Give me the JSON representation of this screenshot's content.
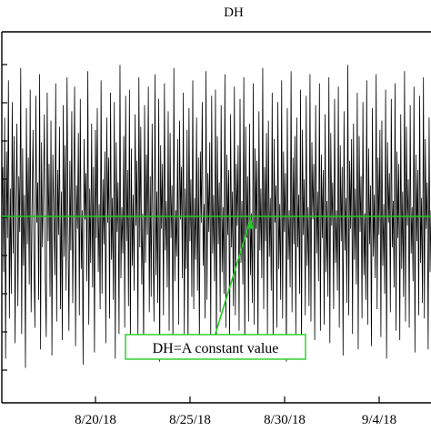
{
  "chart_data": {
    "type": "line",
    "title": "DH",
    "xlabel": "",
    "ylabel": "",
    "x_tick_labels": [
      "8/20/18",
      "8/25/18",
      "8/30/18",
      "9/4/18"
    ],
    "x_range": [
      "8/15/18",
      "9/7/18"
    ],
    "grid": false,
    "legend": "none",
    "annotation": {
      "text": "DH=A constant value",
      "points_to": "constant reference line"
    },
    "series": [
      {
        "color": "#000000",
        "values": [
          0.2,
          1.6,
          -1.8,
          3.2,
          -4.6,
          2.1,
          -0.7,
          4.4,
          -3.3,
          0.9,
          -2.5,
          3.7,
          -1.2,
          2.6,
          -4.1,
          0.4,
          3.0,
          -2.9,
          1.3,
          -0.5,
          4.8,
          -3.8,
          2.2,
          -1.6,
          0.7,
          -4.9,
          3.5,
          -0.9,
          1.9,
          -2.2,
          4.1,
          -3.1,
          0.3,
          2.8,
          -1.4,
          -3.6,
          3.9,
          -0.2,
          1.1,
          -2.7,
          4.6,
          -4.3,
          2.4,
          -1.0,
          0.6,
          3.3,
          -2.0,
          -3.9,
          4.0,
          -0.8,
          1.7,
          -2.6,
          3.1,
          -4.5,
          2.0,
          0.1,
          -1.9,
          4.3,
          -3.4,
          1.5,
          -0.6,
          2.9,
          -3.0,
          0.8,
          -4.0,
          3.6,
          -1.3,
          2.3,
          -2.4,
          4.5,
          -0.3,
          -3.7,
          1.8,
          -1.1,
          3.4,
          -2.8,
          0.5,
          4.2,
          -4.2,
          1.0,
          -0.4,
          2.7,
          -3.2,
          3.8,
          -1.7,
          0.2,
          -4.8,
          2.5,
          -0.1,
          1.4,
          -2.1,
          4.7,
          -3.5,
          0.9,
          -1.5,
          3.0,
          -2.3,
          1.6,
          -4.4,
          2.8,
          -0.7,
          3.5,
          -1.8,
          0.4,
          -3.0,
          4.4,
          -2.5,
          1.2,
          -0.9,
          2.1,
          -4.1,
          3.2,
          -0.2,
          1.9,
          -3.3,
          4.0,
          -1.4,
          0.6,
          -2.7,
          3.7,
          -4.6,
          2.4,
          -0.5,
          1.1,
          -3.8,
          4.9,
          -2.0,
          0.3,
          -1.2,
          2.6,
          -3.6,
          3.9,
          -0.8,
          1.5,
          -2.9,
          4.1,
          -4.0,
          2.2,
          -1.6,
          0.7,
          -2.4,
          3.3,
          -0.3,
          1.8,
          -3.9,
          4.5,
          -1.0,
          2.9,
          -2.2,
          0.1,
          -4.3,
          3.6,
          -1.5,
          2.0,
          -0.6,
          4.2,
          -3.1,
          1.3,
          -2.6,
          3.0,
          -0.9,
          -3.4,
          4.6,
          -1.9,
          0.8,
          -2.8,
          3.8,
          -4.7,
          2.3,
          -0.4,
          1.7,
          -3.2,
          4.3,
          -1.1,
          0.5,
          -2.3,
          3.4,
          -3.7,
          2.7,
          -0.7,
          1.0,
          -4.2,
          4.8,
          -2.1,
          0.2,
          -1.3,
          2.5,
          -3.5,
          3.1,
          -0.1,
          1.6,
          -2.0,
          4.0,
          -3.8,
          0.9,
          -1.7,
          2.8,
          -4.5,
          3.5,
          -0.8,
          1.2,
          -2.6,
          4.4,
          -3.0,
          0.6,
          -1.4,
          3.2,
          -2.4,
          1.9,
          -4.1,
          2.1,
          -0.2,
          3.7,
          -1.6,
          0.4,
          -3.3,
          4.7,
          -2.7,
          1.4,
          -0.5,
          2.4,
          -3.9,
          3.9,
          -1.2,
          0.7,
          -2.1,
          4.1,
          -4.4,
          2.6,
          -0.9,
          1.1,
          -3.1,
          3.6,
          -1.8,
          0.3,
          -2.5,
          4.6,
          -3.6,
          2.0,
          -0.6,
          1.5,
          -4.0,
          3.3,
          -1.0,
          0.8,
          -2.9,
          4.2,
          -3.2,
          1.7,
          -0.3,
          2.3,
          -3.7,
          3.8,
          -1.5,
          0.5,
          -2.2,
          4.5,
          -4.6,
          2.9,
          -0.7,
          1.3,
          -3.4,
          3.0,
          -1.9,
          0.1,
          -2.8,
          4.3,
          -3.5,
          2.2,
          -0.4,
          1.8,
          -4.3,
          3.4,
          -1.1,
          0.9,
          -2.0,
          4.8,
          -3.0,
          1.6,
          -0.8,
          2.7,
          -3.8,
          3.1,
          -1.3,
          0.6,
          -2.4,
          4.0,
          -4.2,
          2.5,
          -0.2,
          1.0,
          -3.6,
          3.7,
          -1.7,
          0.4,
          -2.7,
          4.4,
          -3.3,
          2.1,
          -0.5,
          1.4,
          -4.7,
          3.5,
          -1.4,
          0.2,
          -2.3,
          4.7,
          -3.1,
          1.9,
          -0.9,
          2.6,
          -3.9,
          3.2,
          -1.0,
          0.7,
          -2.5,
          4.1,
          -4.4,
          2.8,
          -0.6,
          1.2,
          -3.2,
          3.9,
          -1.6,
          0.3,
          -2.9,
          4.6,
          -3.4,
          2.4,
          -0.1,
          1.7,
          -4.0,
          3.6,
          -1.2,
          0.8,
          -2.1,
          4.3,
          -3.7,
          2.0,
          -0.7,
          1.5,
          -3.5,
          3.3,
          -1.8,
          0.5,
          -2.6,
          4.5,
          -4.1,
          2.7,
          -0.3,
          1.1,
          -3.0,
          3.8,
          -1.5,
          0.2,
          -2.4,
          4.2,
          -3.6,
          2.3,
          -0.8,
          1.6,
          -4.5,
          3.4,
          -1.1,
          0.6,
          -2.8,
          4.9,
          -3.2,
          1.8,
          -0.4,
          2.5,
          -3.8,
          3.0,
          -1.4,
          0.9,
          -2.2,
          4.0,
          -4.3,
          2.6,
          -0.5,
          1.3,
          -3.3,
          3.7,
          -1.9,
          0.1,
          -2.7,
          4.4,
          -3.5,
          2.2,
          -0.9,
          1.0,
          -4.2,
          3.5,
          -1.3,
          0.7,
          -2.0,
          4.6,
          -3.0,
          1.9,
          -0.6,
          2.8,
          -3.9,
          3.1,
          -1.6,
          0.4,
          -2.5,
          4.1,
          -4.6,
          2.4,
          -0.2,
          1.4,
          -3.1,
          3.8,
          -1.0,
          0.5,
          -2.3,
          4.3,
          -3.7,
          2.1,
          -0.7,
          1.7,
          -4.0,
          3.3,
          -1.7,
          0.8,
          -2.6,
          4.7,
          -3.4,
          2.9,
          -0.3,
          1.2,
          -3.6,
          3.6,
          -1.2,
          0.3,
          -2.1,
          4.2,
          -4.4,
          2.0,
          -0.8,
          1.5,
          -3.2,
          3.9,
          -1.5,
          0.6,
          -2.8,
          4.5,
          -3.3,
          2.5,
          -0.4,
          1.1,
          -4.3,
          3.2,
          -1.8,
          0.2
        ]
      }
    ],
    "reference_line": {
      "value": 0,
      "color": "#22cc22"
    }
  }
}
